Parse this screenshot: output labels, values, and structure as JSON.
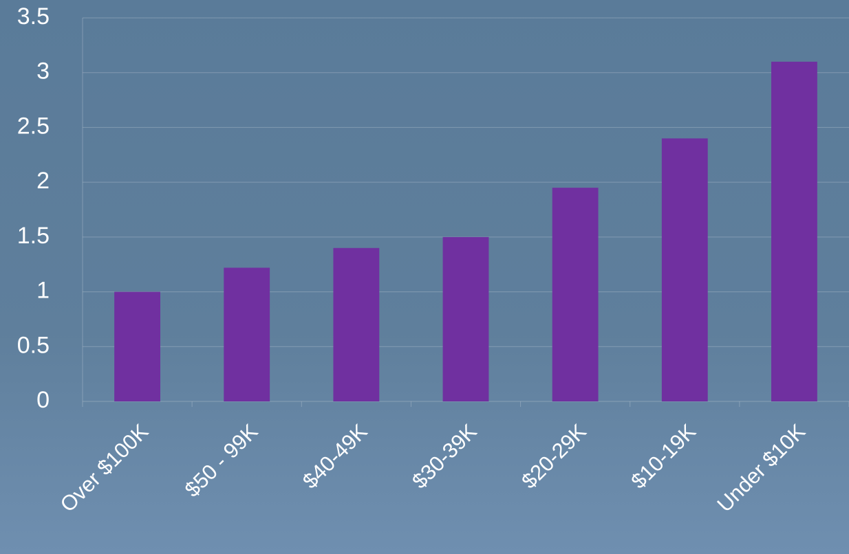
{
  "chart_data": {
    "type": "bar",
    "categories": [
      "Over $100K",
      "$50 - 99K",
      "$40-49K",
      "$30-39K",
      "$20-29K",
      "$10-19K",
      "Under $10K"
    ],
    "values": [
      1,
      1.22,
      1.4,
      1.5,
      1.95,
      2.4,
      3.1
    ],
    "color": "#7030a0",
    "ylim": [
      0,
      3.5
    ],
    "yticks": [
      0,
      0.5,
      1,
      1.5,
      2,
      2.5,
      3,
      3.5
    ],
    "grid": true
  }
}
